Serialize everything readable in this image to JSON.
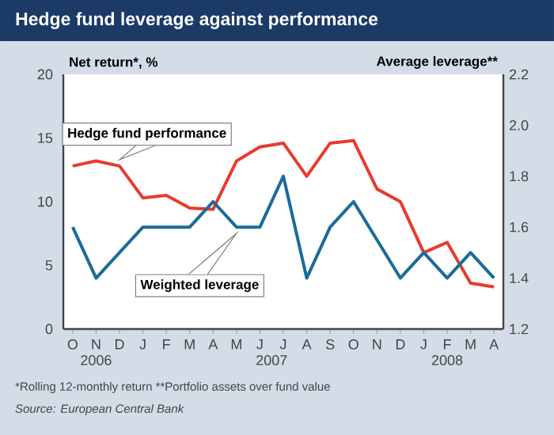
{
  "chart_data": {
    "type": "line",
    "title": "Hedge fund leverage against performance",
    "ylabel": "Net return*, %",
    "y2label": "Average leverage**",
    "categories": [
      "O",
      "N",
      "D",
      "J",
      "F",
      "M",
      "A",
      "M",
      "J",
      "J",
      "A",
      "S",
      "O",
      "N",
      "D",
      "J",
      "F",
      "M",
      "A"
    ],
    "ylim": [
      0,
      20
    ],
    "yticks": [
      0,
      5,
      10,
      15,
      20
    ],
    "y2lim": [
      1.2,
      2.2
    ],
    "y2ticks": [
      1.2,
      1.4,
      1.6,
      1.8,
      {
        "value": 2,
        "label": "2.0"
      },
      2.2
    ],
    "series": [
      {
        "name": "Hedge fund performance",
        "color": "#e63c2e",
        "values": [
          12.8,
          13.2,
          12.8,
          10.3,
          10.5,
          9.5,
          9.4,
          13.2,
          14.3,
          14.6,
          12.0,
          14.6,
          14.8,
          11.0,
          10.0,
          6.0,
          6.8,
          3.6,
          3.3
        ]
      },
      {
        "name": "Weighted leverage",
        "color": "#1b6b98",
        "axis": "y2",
        "values": [
          1.6,
          1.4,
          1.5,
          1.6,
          1.6,
          1.6,
          1.7,
          1.6,
          1.6,
          1.8,
          1.4,
          1.6,
          1.7,
          1.55,
          1.4,
          1.5,
          1.4,
          1.5,
          1.4
        ]
      }
    ],
    "annotations": [
      "2006",
      "2007",
      "2008",
      "*Rolling 12-monthly return  **Portfolio assets over fund value",
      "Source: European Central Bank"
    ]
  }
}
